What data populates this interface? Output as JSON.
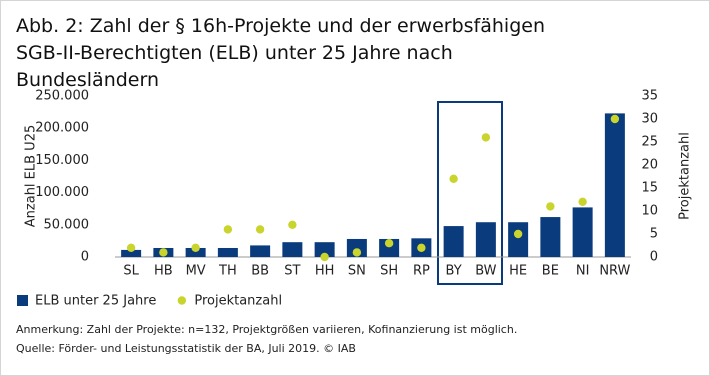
{
  "chart_data": {
    "type": "bar",
    "title": "Abb. 2: Zahl der § 16h-Projekte und der erwerbsfähigen SGB-II-Berechtigten (ELB) unter 25 Jahre nach Bundesländern",
    "y_label": "Anzahl ELB U25",
    "y2_label": "Projektanzahl",
    "categories": [
      "SL",
      "HB",
      "MV",
      "TH",
      "BB",
      "ST",
      "HH",
      "SN",
      "SH",
      "RP",
      "BY",
      "BW",
      "HE",
      "BE",
      "NI",
      "NRW"
    ],
    "series": [
      {
        "name": "ELB unter 25 Jahre",
        "type": "bar",
        "color": "#0a3b7c",
        "values": [
          11000,
          14000,
          14000,
          14000,
          18000,
          23000,
          23000,
          28000,
          28000,
          29000,
          48000,
          54000,
          54000,
          62000,
          77000,
          223000
        ]
      },
      {
        "name": "Projektanzahl",
        "type": "scatter",
        "color": "#c9d42c",
        "axis": "y2",
        "values": [
          2,
          1,
          2,
          6,
          6,
          7,
          0,
          1,
          3,
          2,
          17,
          26,
          5,
          11,
          12,
          30
        ]
      }
    ],
    "ylim": [
      0,
      250000
    ],
    "yticks": [
      0,
      {
        "value": 50000,
        "label": "50.000"
      },
      {
        "value": 100000,
        "label": "100.000"
      },
      {
        "value": 150000,
        "label": "150.000"
      },
      {
        "value": 200000,
        "label": "200.000"
      },
      {
        "value": 250000,
        "label": "250.000"
      }
    ],
    "y2lim": [
      0,
      35
    ],
    "y2ticks": [
      0,
      5,
      10,
      15,
      20,
      25,
      30,
      35
    ],
    "grid": false,
    "legend": "bottom-left",
    "notes": [
      "Anmerkung: Zahl der Projekte: n=132, Projektgrößen variieren, Kofinanzierung ist möglich.",
      "Quelle: Förder- und Leistungsstatistik der BA, Juli 2019. © IAB"
    ]
  }
}
